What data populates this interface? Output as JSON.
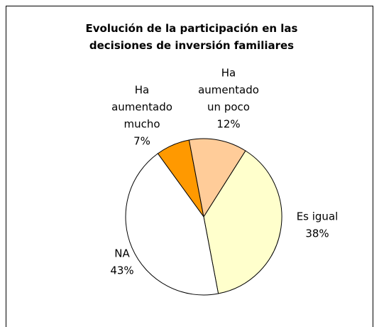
{
  "chart_data": {
    "type": "pie",
    "title": "Evolución de la participación en las decisiones de inversión familiares",
    "categories": [
      [
        "Ha",
        "aumentado",
        "mucho"
      ],
      [
        "Ha",
        "aumentado",
        "un poco"
      ],
      [
        "Es igual"
      ],
      [
        "NA"
      ]
    ],
    "values": [
      7,
      12,
      38,
      43
    ],
    "value_labels": [
      "7%",
      "12%",
      "38%",
      "43%"
    ],
    "colors": [
      "#FF9900",
      "#FFCC99",
      "#FFFFCC",
      "#FFFFFF"
    ]
  }
}
